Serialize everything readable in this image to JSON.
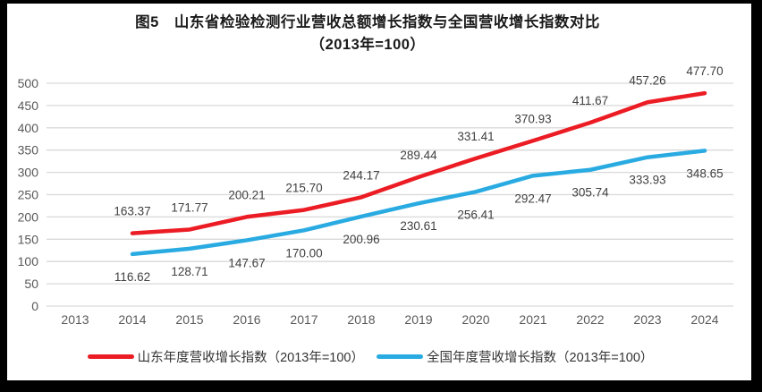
{
  "title": {
    "line1": "图5　山东省检验检测行业营收总额增长指数与全国营收增长指数对比",
    "line2": "（2013年=100）"
  },
  "colors": {
    "shandong_red": "#ec1c24",
    "national_blue": "#29abe2",
    "gridline": "#d9d9d9",
    "axis_text": "#595959",
    "data_label_text": "#404040",
    "title_text": "#1a1a1a",
    "background": "#ffffff",
    "frame": "#000000"
  },
  "chart_data": {
    "type": "line",
    "title": "图5 山东省检验检测行业营收总额增长指数与全国营收增长指数对比（2013年=100）",
    "categories": [
      "2013",
      "2014",
      "2015",
      "2016",
      "2017",
      "2018",
      "2019",
      "2020",
      "2021",
      "2022",
      "2023",
      "2024"
    ],
    "series": [
      {
        "name": "山东年度营收增长指数（2013年=100）",
        "color": "#ec1c24",
        "label_position": "above",
        "labels": [
          null,
          "163.37",
          "171.77",
          "200.21",
          "215.70",
          "244.17",
          "289.44",
          "331.41",
          "370.93",
          "411.67",
          "457.26",
          "477.70"
        ]
      },
      {
        "name": "全国年度营收增长指数（2013年=100）",
        "color": "#29abe2",
        "label_position": "below",
        "labels": [
          null,
          "116.62",
          "128.71",
          "147.67",
          "170.00",
          "200.96",
          "230.61",
          "256.41",
          "292.47",
          "305.74",
          "333.93",
          "348.65"
        ]
      }
    ],
    "ylim": [
      0,
      500
    ],
    "y_ticks": [
      0,
      50,
      100,
      150,
      200,
      250,
      300,
      350,
      400,
      450,
      500
    ],
    "xlabel": "",
    "ylabel": "",
    "grid": "horizontal",
    "legend_position": "bottom",
    "data_labels": true
  },
  "legend": {
    "items": [
      {
        "label": "山东年度营收增长指数（2013年=100）",
        "color": "#ec1c24"
      },
      {
        "label": "全国年度营收增长指数（2013年=100）",
        "color": "#29abe2"
      }
    ]
  }
}
